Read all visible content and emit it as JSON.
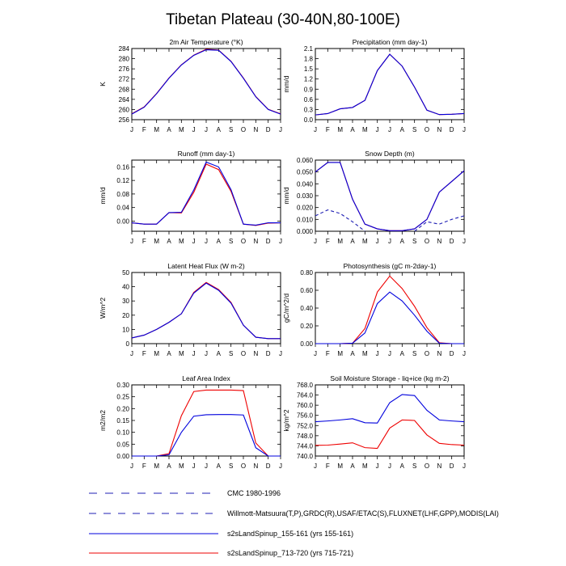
{
  "figure_title": "Tibetan Plateau (30-40N,80-100E)",
  "colors": {
    "cmc": "#1f1fb4",
    "willmott": "#1f1fb4",
    "s2s_155": "#0000dd",
    "s2s_713": "#ee0000"
  },
  "legend": [
    {
      "text": "CMC 1980-1996",
      "style": "dash-long",
      "color": "#1f1fb4"
    },
    {
      "text": "Willmott-Matsuura(T,P),GRDC(R),USAF/ETAC(S),FLUXNET(LHF,GPP),MODIS(LAI)",
      "style": "dash-short",
      "color": "#1f1fb4"
    },
    {
      "text": "s2sLandSpinup_155-161 (yrs 155-161)",
      "style": "solid",
      "color": "#0000dd"
    },
    {
      "text": "s2sLandSpinup_713-720 (yrs 715-721)",
      "style": "solid",
      "color": "#ee0000"
    }
  ],
  "chart_data": [
    {
      "type": "line",
      "title": "2m Air Temperature (°K)",
      "ylabel": "K",
      "x": [
        "J",
        "F",
        "M",
        "A",
        "M",
        "J",
        "J",
        "A",
        "S",
        "O",
        "N",
        "D",
        "J"
      ],
      "ylim": [
        256,
        284
      ],
      "yticks": [
        256,
        260,
        264,
        268,
        272,
        276,
        280,
        284
      ],
      "yticklabels": [
        "256",
        "260",
        "264",
        "268",
        "272",
        "276",
        "280",
        "284"
      ],
      "series": [
        {
          "color": "#ee0000",
          "dash": "",
          "values": [
            258.3,
            261.0,
            266.3,
            272.4,
            277.6,
            281.4,
            283.7,
            283.4,
            279.0,
            272.4,
            265.1,
            260.1,
            258.3
          ]
        },
        {
          "color": "#0000dd",
          "dash": "",
          "values": [
            258.2,
            260.9,
            266.2,
            272.3,
            277.5,
            281.3,
            283.5,
            283.3,
            278.9,
            272.3,
            265.0,
            260.0,
            258.2
          ]
        }
      ]
    },
    {
      "type": "line",
      "title": "Precipitation (mm day-1)",
      "ylabel": "mm/d",
      "x": [
        "J",
        "F",
        "M",
        "A",
        "M",
        "J",
        "J",
        "A",
        "S",
        "O",
        "N",
        "D",
        "J"
      ],
      "ylim": [
        0,
        2.1
      ],
      "yticks": [
        0,
        0.3,
        0.6,
        0.9,
        1.2,
        1.5,
        1.8,
        2.1
      ],
      "yticklabels": [
        "0.0",
        "0.3",
        "0.6",
        "0.9",
        "1.2",
        "1.5",
        "1.8",
        "2.1"
      ],
      "series": [
        {
          "color": "#ee0000",
          "dash": "",
          "values": [
            0.14,
            0.18,
            0.32,
            0.36,
            0.57,
            1.45,
            1.93,
            1.58,
            0.96,
            0.28,
            0.15,
            0.16,
            0.18
          ]
        },
        {
          "color": "#0000dd",
          "dash": "",
          "values": [
            0.14,
            0.18,
            0.32,
            0.36,
            0.57,
            1.45,
            1.93,
            1.58,
            0.96,
            0.28,
            0.15,
            0.16,
            0.18
          ]
        }
      ]
    },
    {
      "type": "line",
      "title": "Runoff (mm day-1)",
      "ylabel": "mm/d",
      "x": [
        "J",
        "F",
        "M",
        "A",
        "M",
        "J",
        "J",
        "A",
        "S",
        "O",
        "N",
        "D",
        "J"
      ],
      "ylim": [
        -0.03,
        0.18
      ],
      "yticks": [
        0,
        0.04,
        0.08,
        0.12,
        0.16
      ],
      "yticklabels": [
        "0.00",
        "0.04",
        "0.08",
        "0.12",
        "0.16"
      ],
      "series": [
        {
          "color": "#ee0000",
          "dash": "",
          "values": [
            -0.005,
            -0.009,
            -0.009,
            0.025,
            0.024,
            0.085,
            0.168,
            0.152,
            0.088,
            -0.009,
            -0.013,
            -0.006,
            -0.005
          ]
        },
        {
          "color": "#0000dd",
          "dash": "",
          "values": [
            -0.005,
            -0.009,
            -0.009,
            0.025,
            0.026,
            0.092,
            0.174,
            0.16,
            0.093,
            -0.009,
            -0.012,
            -0.005,
            -0.005
          ]
        }
      ]
    },
    {
      "type": "line",
      "title": "Snow Depth (m)",
      "ylabel": "mm/d",
      "x": [
        "J",
        "F",
        "M",
        "A",
        "M",
        "J",
        "J",
        "A",
        "S",
        "O",
        "N",
        "D",
        "J"
      ],
      "ylim": [
        0,
        0.06
      ],
      "yticks": [
        0,
        0.01,
        0.02,
        0.03,
        0.04,
        0.05,
        0.06
      ],
      "yticklabels": [
        "0.000",
        "0.010",
        "0.020",
        "0.030",
        "0.040",
        "0.050",
        "0.060"
      ],
      "series": [
        {
          "color": "#1f1fb4",
          "dash": "4,3",
          "values": [
            0.013,
            0.018,
            0.015,
            0.008,
            0.0,
            null,
            null,
            null,
            0.0,
            0.008,
            0.006,
            0.01,
            0.013
          ]
        },
        {
          "color": "#ee0000",
          "dash": "",
          "values": [
            0.05,
            0.058,
            0.058,
            0.027,
            0.006,
            0.002,
            0.0005,
            0.0005,
            0.002,
            0.01,
            0.033,
            0.042,
            0.051
          ]
        },
        {
          "color": "#0000dd",
          "dash": "",
          "values": [
            0.05,
            0.058,
            0.058,
            0.027,
            0.006,
            0.002,
            0.0005,
            0.0005,
            0.002,
            0.01,
            0.033,
            0.042,
            0.051
          ]
        }
      ]
    },
    {
      "type": "line",
      "title": "Latent Heat Flux (W m-2)",
      "ylabel": "W/m^2",
      "x": [
        "J",
        "F",
        "M",
        "A",
        "M",
        "J",
        "J",
        "A",
        "S",
        "O",
        "N",
        "D",
        "J"
      ],
      "ylim": [
        0,
        50
      ],
      "yticks": [
        0,
        10,
        20,
        30,
        40,
        50
      ],
      "yticklabels": [
        "0",
        "10",
        "20",
        "30",
        "40",
        "50"
      ],
      "series": [
        {
          "color": "#ee0000",
          "dash": "",
          "values": [
            4.0,
            6.0,
            10.0,
            15.0,
            21.0,
            36.0,
            43.0,
            38.0,
            29.0,
            13.0,
            4.5,
            3.5,
            3.5
          ]
        },
        {
          "color": "#0000dd",
          "dash": "",
          "values": [
            4.0,
            6.0,
            10.0,
            15.0,
            21.0,
            35.5,
            42.5,
            37.5,
            28.5,
            13.0,
            4.5,
            3.5,
            3.5
          ]
        }
      ]
    },
    {
      "type": "line",
      "title": "Photosynthesis (gC m-2day-1)",
      "ylabel": "gC/m^2/d",
      "x": [
        "J",
        "F",
        "M",
        "A",
        "M",
        "J",
        "J",
        "A",
        "S",
        "O",
        "N",
        "D",
        "J"
      ],
      "ylim": [
        0,
        0.8
      ],
      "yticks": [
        0,
        0.2,
        0.4,
        0.6,
        0.8
      ],
      "yticklabels": [
        "0.00",
        "0.20",
        "0.40",
        "0.60",
        "0.80"
      ],
      "series": [
        {
          "color": "#ee0000",
          "dash": "",
          "values": [
            0,
            0,
            0,
            0.005,
            0.17,
            0.58,
            0.76,
            0.62,
            0.42,
            0.18,
            0.01,
            0,
            0
          ]
        },
        {
          "color": "#0000dd",
          "dash": "",
          "values": [
            0,
            0,
            0,
            0.005,
            0.12,
            0.45,
            0.58,
            0.48,
            0.32,
            0.14,
            0.005,
            0,
            0
          ]
        }
      ]
    },
    {
      "type": "line",
      "title": "Leaf Area Index",
      "ylabel": "m2/m2",
      "x": [
        "J",
        "F",
        "M",
        "A",
        "M",
        "J",
        "J",
        "A",
        "S",
        "O",
        "N",
        "D",
        "J"
      ],
      "ylim": [
        0,
        0.3
      ],
      "yticks": [
        0,
        0.05,
        0.1,
        0.15,
        0.2,
        0.25,
        0.3
      ],
      "yticklabels": [
        "0.00",
        "0.05",
        "0.10",
        "0.15",
        "0.20",
        "0.25",
        "0.30"
      ],
      "series": [
        {
          "color": "#ee0000",
          "dash": "",
          "values": [
            0,
            0,
            0,
            0.01,
            0.17,
            0.272,
            0.278,
            0.278,
            0.278,
            0.276,
            0.055,
            0,
            0
          ]
        },
        {
          "color": "#0000dd",
          "dash": "",
          "values": [
            0,
            0,
            0,
            0.005,
            0.1,
            0.168,
            0.174,
            0.175,
            0.175,
            0.173,
            0.035,
            0,
            0
          ]
        }
      ]
    },
    {
      "type": "line",
      "title": "Soil Moisture Storage - liq+ice (kg m-2)",
      "ylabel": "kg/m^2",
      "x": [
        "J",
        "F",
        "M",
        "A",
        "M",
        "J",
        "J",
        "A",
        "S",
        "O",
        "N",
        "D",
        "J"
      ],
      "ylim": [
        740,
        768
      ],
      "yticks": [
        740,
        744,
        748,
        752,
        756,
        760,
        764,
        768
      ],
      "yticklabels": [
        "740.0",
        "744.0",
        "748.0",
        "752.0",
        "756.0",
        "760.0",
        "764.0",
        "768.0"
      ],
      "series": [
        {
          "color": "#ee0000",
          "dash": "",
          "values": [
            744.2,
            744.3,
            744.7,
            745.2,
            743.3,
            743.0,
            751.0,
            754.2,
            754.0,
            748.3,
            745.0,
            744.5,
            744.3
          ]
        },
        {
          "color": "#0000dd",
          "dash": "",
          "values": [
            753.5,
            753.8,
            754.2,
            754.7,
            753.1,
            753.0,
            761.0,
            764.2,
            763.8,
            758.0,
            754.2,
            753.8,
            753.5
          ]
        }
      ]
    }
  ]
}
